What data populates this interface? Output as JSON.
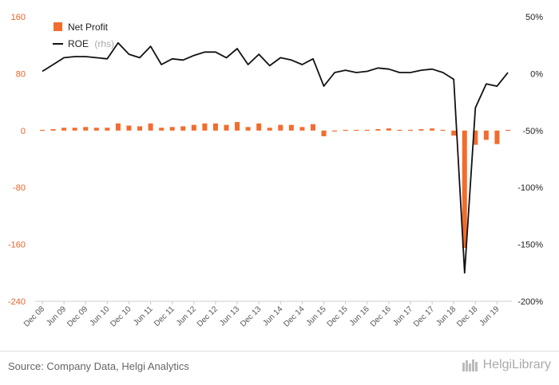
{
  "chart_data": {
    "type": "bar+line",
    "legend": {
      "bar_label": "Net Profit",
      "line_label": "ROE",
      "line_suffix": "(rhs)"
    },
    "left_axis": {
      "ylim": [
        -240,
        160
      ],
      "ticks": [
        "160",
        "80",
        "0",
        "-80",
        "-160",
        "-240"
      ],
      "tick_values": [
        160,
        80,
        0,
        -80,
        -160,
        -240
      ]
    },
    "right_axis": {
      "ylim": [
        -200,
        50
      ],
      "ticks": [
        "50%",
        "0%",
        "-50%",
        "-100%",
        "-150%",
        "-200%"
      ],
      "tick_values": [
        50,
        0,
        -50,
        -100,
        -150,
        -200
      ]
    },
    "x_labels": [
      "Dec 08",
      "Jun 09",
      "Dec 09",
      "Jun 10",
      "Dec 10",
      "Jun 11",
      "Dec 11",
      "Jun 12",
      "Dec 12",
      "Jun 13",
      "Dec 13",
      "Jun 14",
      "Dec 14",
      "Jun 15",
      "Dec 15",
      "Jun 16",
      "Dec 16",
      "Jun 17",
      "Dec 17",
      "Jun 18",
      "Dec 18",
      "Jun 19"
    ],
    "series": [
      {
        "name": "Net Profit",
        "type": "bar",
        "values": [
          1,
          2,
          4,
          4,
          5,
          4,
          4,
          10,
          7,
          6,
          10,
          4,
          5,
          6,
          8,
          10,
          10,
          8,
          12,
          5,
          10,
          4,
          8,
          8,
          5,
          9,
          -8,
          0,
          1,
          1,
          1,
          2,
          3,
          1,
          1,
          2,
          3,
          1,
          -7,
          -165,
          -20,
          -13,
          -19,
          1
        ]
      },
      {
        "name": "ROE",
        "type": "line",
        "axis": "right",
        "values": [
          2,
          8,
          14,
          15,
          15,
          14,
          13,
          27,
          17,
          14,
          24,
          8,
          13,
          12,
          16,
          19,
          19,
          14,
          22,
          8,
          17,
          7,
          14,
          12,
          8,
          13,
          -11,
          1,
          3,
          1,
          2,
          5,
          4,
          1,
          1,
          3,
          4,
          1,
          -5,
          -175,
          -30,
          -9,
          -11,
          1
        ]
      }
    ],
    "colors": {
      "bar": "#f26c2d",
      "line": "#111111",
      "left_tick": "#e8622a"
    }
  },
  "footer": {
    "source": "Source: Company Data, Helgi Analytics",
    "brand": "HelgiLibrary"
  }
}
